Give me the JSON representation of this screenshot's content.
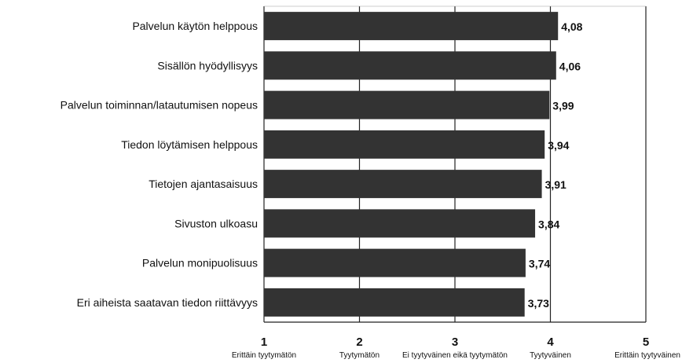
{
  "chart_data": {
    "type": "bar",
    "orientation": "horizontal",
    "categories": [
      "Palvelun käytön helppous",
      "Sisällön hyödyllisyys",
      "Palvelun toiminnan/latautumisen nopeus",
      "Tiedon löytämisen helppous",
      "Tietojen ajantasaisuus",
      "Sivuston ulkoasu",
      "Palvelun monipuolisuus",
      "Eri aiheista saatavan tiedon riittävyys"
    ],
    "values": [
      4.08,
      4.06,
      3.99,
      3.94,
      3.91,
      3.84,
      3.74,
      3.73
    ],
    "value_labels": [
      "4,08",
      "4,06",
      "3,99",
      "3,94",
      "3,91",
      "3,84",
      "3,74",
      "3,73"
    ],
    "xlim": [
      1,
      5
    ],
    "x_ticks": [
      {
        "value": 1,
        "label": "1",
        "text": "Erittäin tyytymätön"
      },
      {
        "value": 2,
        "label": "2",
        "text": "Tyytymätön"
      },
      {
        "value": 3,
        "label": "3",
        "text": "Ei tyytyväinen eikä tyytymätön"
      },
      {
        "value": 4,
        "label": "4",
        "text": "Tyytyväinen"
      },
      {
        "value": 5,
        "label": "5",
        "text": "Erittäin tyytyväinen"
      }
    ],
    "grid": true,
    "bar_color": "#333333"
  }
}
